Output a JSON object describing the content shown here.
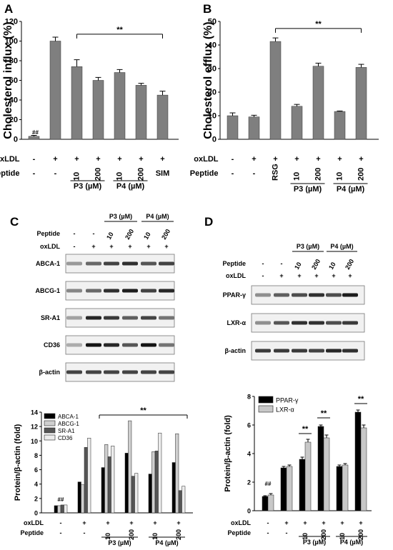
{
  "panels": {
    "A": "A",
    "B": "B",
    "C": "C",
    "D": "D"
  },
  "chart_data": [
    {
      "id": "A",
      "type": "bar",
      "ylabel": "Cholesterol influx (%)",
      "ylim": [
        0,
        120
      ],
      "yticks": [
        "0",
        "20",
        "40",
        "60",
        "80",
        "100",
        "120"
      ],
      "values": [
        3,
        100,
        74,
        60,
        68,
        55,
        45
      ],
      "errors": [
        1,
        4,
        7,
        3,
        3,
        2,
        4
      ],
      "bar_labels": [
        "##",
        "",
        "",
        "",
        "",
        "",
        ""
      ],
      "significance": "**",
      "row1_label": "oxLDL",
      "row1": [
        "-",
        "+",
        "+",
        "+",
        "+",
        "+",
        "+"
      ],
      "row2_label": "Peptide",
      "row2": [
        "-",
        "-",
        "10",
        "200",
        "10",
        "200",
        "SIM"
      ],
      "groups": [
        "P3 (µM)",
        "P4 (µM)"
      ],
      "color": "#7f7f7f"
    },
    {
      "id": "B",
      "type": "bar",
      "ylabel": "Cholesterol efflux (%)",
      "ylim": [
        0,
        50
      ],
      "yticks": [
        "0",
        "10",
        "20",
        "30",
        "40",
        "50"
      ],
      "values": [
        10,
        9.5,
        41.5,
        14,
        31,
        11.8,
        30.5
      ],
      "errors": [
        1.2,
        0.7,
        1.5,
        0.8,
        1.3,
        0.2,
        1.3
      ],
      "significance": "**",
      "row1_label": "oxLDL",
      "row1": [
        "-",
        "+",
        "+",
        "+",
        "+",
        "+",
        "+"
      ],
      "row2_label": "Peptide",
      "row2": [
        "-",
        "-",
        "RSG",
        "10",
        "200",
        "10",
        "200"
      ],
      "groups": [
        "P3 (µM)",
        "P4 (µM)"
      ],
      "color": "#7f7f7f"
    },
    {
      "id": "C",
      "type": "bar",
      "ylabel": "Protein/β-actin (fold)",
      "ylim": [
        0,
        14
      ],
      "yticks": [
        "0",
        "2",
        "4",
        "6",
        "8",
        "10",
        "12",
        "14"
      ],
      "series": [
        {
          "name": "ABCA-1",
          "values": [
            1.0,
            4.3,
            6.3,
            8.3,
            5.4,
            7.0
          ],
          "color": "#000000"
        },
        {
          "name": "ABCG-1",
          "values": [
            1.0,
            3.9,
            9.5,
            12.8,
            8.5,
            11.0
          ],
          "color": "#cfcfcf"
        },
        {
          "name": "SR-A1",
          "values": [
            1.1,
            9.1,
            7.8,
            5.1,
            8.6,
            3.1
          ],
          "color": "#555555"
        },
        {
          "name": "CD36",
          "values": [
            1.1,
            10.4,
            9.3,
            5.5,
            11.1,
            3.7
          ],
          "color": "#ececec"
        }
      ],
      "bar_labels": [
        "##",
        "",
        "",
        "",
        "",
        ""
      ],
      "significance": "**",
      "row1_label": "oxLDL",
      "row1": [
        "-",
        "+",
        "+",
        "+",
        "+",
        "+"
      ],
      "row2_label": "Peptide",
      "row2": [
        "-",
        "-",
        "10",
        "200",
        "10",
        "200"
      ],
      "groups": [
        "P3 (µM)",
        "P4 (µM)"
      ]
    },
    {
      "id": "D",
      "type": "bar",
      "ylabel": "Protein/β-actin (fold)",
      "ylim": [
        0,
        8
      ],
      "yticks": [
        "0",
        "2",
        "4",
        "6",
        "8"
      ],
      "series": [
        {
          "name": "PPAR-γ",
          "values": [
            1.0,
            3.0,
            3.6,
            5.9,
            3.1,
            6.9
          ],
          "errors": [
            0.05,
            0.1,
            0.15,
            0.1,
            0.1,
            0.15
          ],
          "color": "#000000"
        },
        {
          "name": "LXR-α",
          "values": [
            1.1,
            3.1,
            4.8,
            5.1,
            3.2,
            5.8
          ],
          "errors": [
            0.1,
            0.1,
            0.2,
            0.2,
            0.1,
            0.2
          ],
          "color": "#c8c8c8"
        }
      ],
      "bar_labels": [
        "##",
        "",
        "",
        "",
        "",
        ""
      ],
      "pair_sig": [
        "",
        "",
        "**",
        "**",
        "",
        "**"
      ],
      "row1_label": "oxLDL",
      "row1": [
        "-",
        "+",
        "+",
        "+",
        "+",
        "+"
      ],
      "row2_label": "Peptide",
      "row2": [
        "-",
        "-",
        "10",
        "200",
        "10",
        "200"
      ],
      "groups": [
        "P3 (µM)",
        "P4 (µM)"
      ]
    }
  ],
  "blots": [
    {
      "id": "C",
      "header_groups": [
        "P3 (µM)",
        "P4 (µM)"
      ],
      "row_labels": [
        "Peptide",
        "oxLDL"
      ],
      "peptide": [
        "-",
        "-",
        "10",
        "200",
        "10",
        "200"
      ],
      "oxldl": [
        "-",
        "+",
        "+",
        "+",
        "+",
        "+"
      ],
      "bands": [
        {
          "label": "ABCA-1",
          "intensity": [
            0.25,
            0.5,
            0.7,
            0.8,
            0.6,
            0.7
          ]
        },
        {
          "label": "ABCG-1",
          "intensity": [
            0.35,
            0.5,
            0.8,
            0.9,
            0.7,
            0.85
          ]
        },
        {
          "label": "SR-A1",
          "intensity": [
            0.2,
            0.85,
            0.75,
            0.55,
            0.7,
            0.45
          ]
        },
        {
          "label": "CD36",
          "intensity": [
            0.15,
            0.95,
            0.85,
            0.6,
            0.95,
            0.45
          ]
        },
        {
          "label": "β-actin",
          "intensity": [
            0.7,
            0.7,
            0.7,
            0.7,
            0.7,
            0.7
          ]
        }
      ]
    },
    {
      "id": "D",
      "header_groups": [
        "P3 (µM)",
        "P4 (µM)"
      ],
      "row_labels": [
        "Peptide",
        "oxLDL"
      ],
      "peptide": [
        "-",
        "-",
        "10",
        "200",
        "10",
        "200"
      ],
      "oxldl": [
        "-",
        "+",
        "+",
        "+",
        "+",
        "+"
      ],
      "bands": [
        {
          "label": "PPAR-γ",
          "intensity": [
            0.3,
            0.55,
            0.65,
            0.8,
            0.65,
            0.9
          ]
        },
        {
          "label": "LXR-α",
          "intensity": [
            0.3,
            0.6,
            0.8,
            0.8,
            0.65,
            0.75
          ]
        },
        {
          "label": "β-actin",
          "intensity": [
            0.75,
            0.75,
            0.75,
            0.7,
            0.85,
            0.8
          ]
        }
      ]
    }
  ]
}
